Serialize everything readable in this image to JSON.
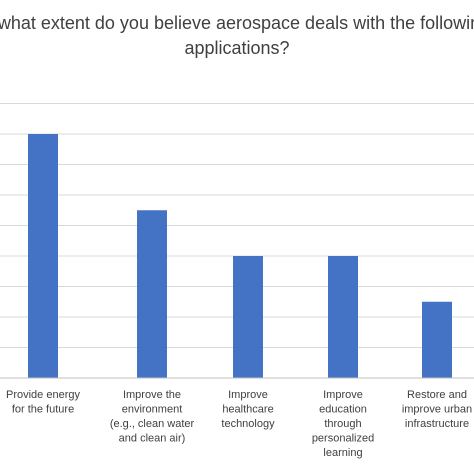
{
  "chart_data": {
    "type": "bar",
    "title_lines": [
      "To what extent do you believe aerospace deals with the following",
      "applications?"
    ],
    "categories": [
      "Provide energy for the future",
      "Improve the environment (e.g., clean water and clean air)",
      "Improve healthcare technology",
      "Improve education through personalized learning",
      "Restore and improve urban infrastructure"
    ],
    "category_label_lines": [
      [
        "Provide energy",
        "for the future"
      ],
      [
        "Improve the",
        "environment",
        "(e.g., clean water",
        "and clean air)"
      ],
      [
        "Improve",
        "healthcare",
        "technology"
      ],
      [
        "Improve",
        "education",
        "through",
        "personalized",
        "learning"
      ],
      [
        "Restore and",
        "improve urban",
        "infrastructure"
      ]
    ],
    "values": [
      8,
      5.5,
      4,
      4,
      2.5
    ],
    "ylim": [
      0,
      9
    ],
    "grid": true,
    "bar_color": "#4472c4"
  }
}
